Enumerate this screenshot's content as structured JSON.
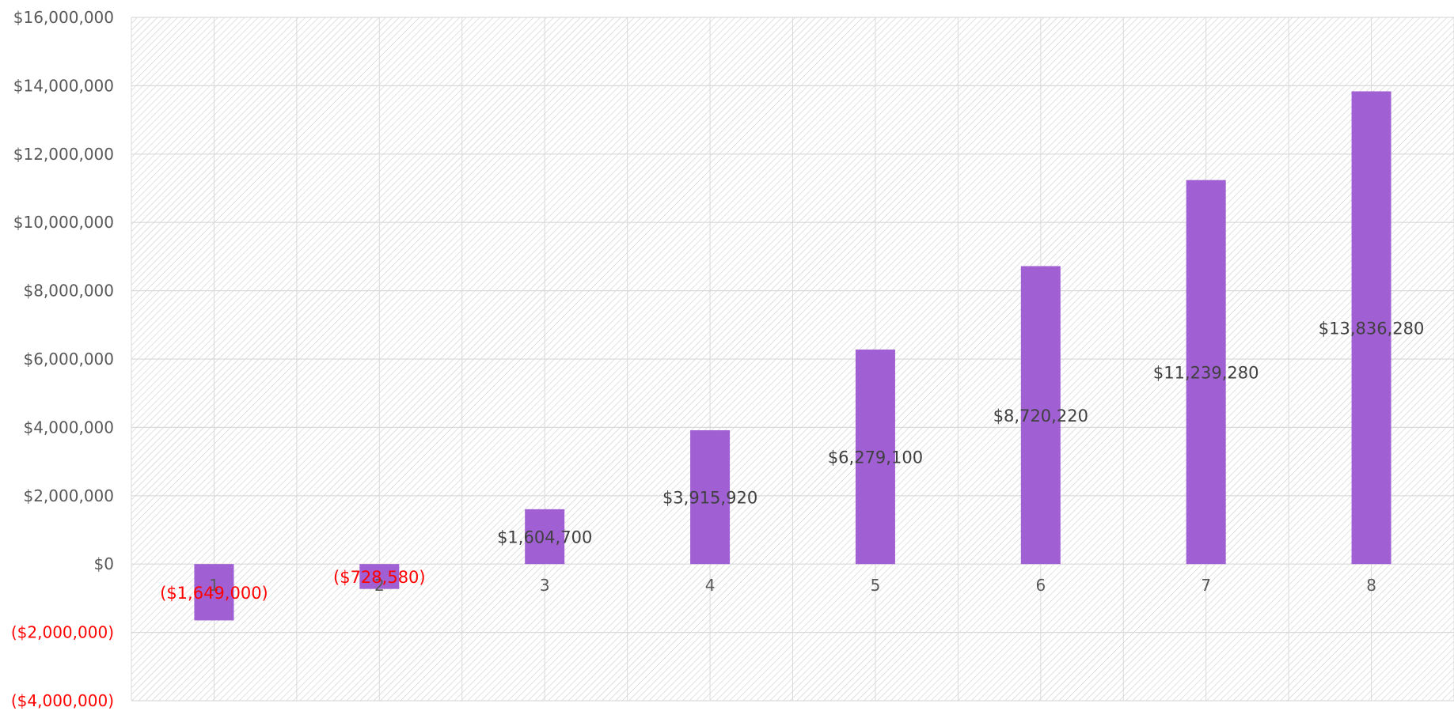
{
  "chart_data": {
    "type": "bar",
    "title": "",
    "xlabel": "",
    "ylabel": "",
    "categories": [
      "1",
      "2",
      "3",
      "4",
      "5",
      "6",
      "7",
      "8"
    ],
    "values": [
      -1649000,
      -728580,
      1604700,
      3915920,
      6279100,
      8720220,
      11239280,
      13836280
    ],
    "data_labels": [
      "($1,649,000)",
      "($728,580)",
      "$1,604,700",
      "$3,915,920",
      "$6,279,100",
      "$8,720,220",
      "$11,239,280",
      "$13,836,280"
    ],
    "ylim": [
      -4000000,
      16000000
    ],
    "y_ticks": [
      16000000,
      14000000,
      12000000,
      10000000,
      8000000,
      6000000,
      4000000,
      2000000,
      0,
      -2000000,
      -4000000
    ],
    "y_tick_labels": [
      "$16,000,000",
      "$14,000,000",
      "$12,000,000",
      "$10,000,000",
      "$8,000,000",
      "$6,000,000",
      "$4,000,000",
      "$2,000,000",
      "$0",
      "($2,000,000)",
      "($4,000,000)"
    ],
    "grid": true,
    "legend": "none",
    "colors": {
      "bar": "#a05fd2",
      "negative_label": "#ff0000",
      "label": "#404040",
      "tick": "#595959",
      "gridline": "#d9d9d9",
      "hatch": "#c8c8c8"
    }
  }
}
